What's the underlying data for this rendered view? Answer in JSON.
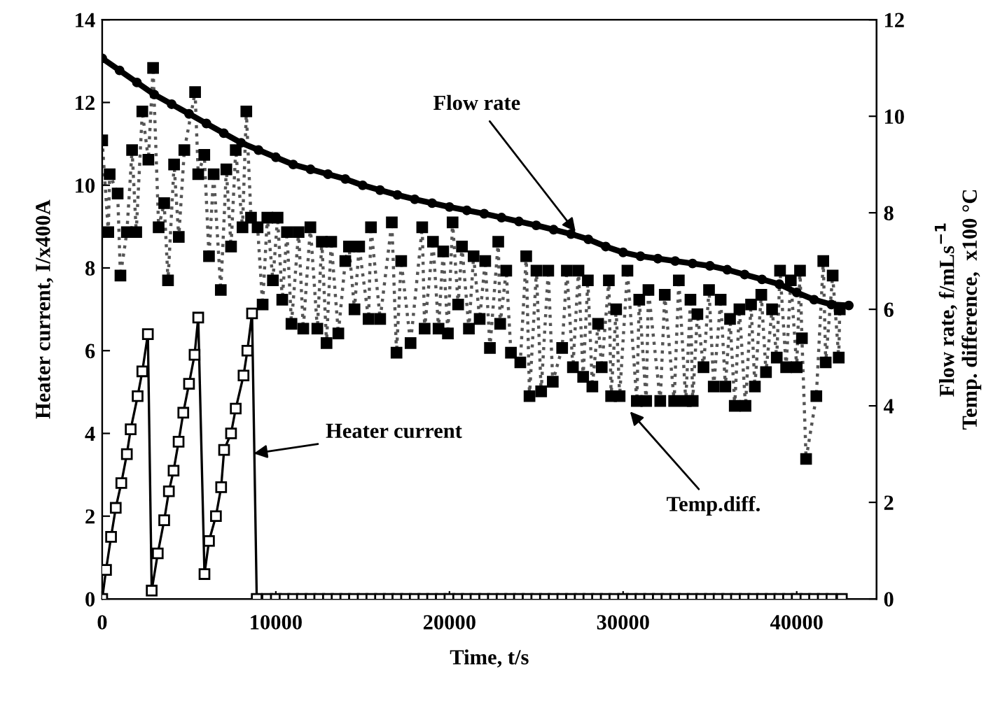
{
  "chart_data": {
    "type": "line",
    "xlabel": "Time, t/s",
    "ylabel": "Heater current, I/x400A",
    "y2label": "Flow rate, f/mLs$^{−1}$\nTemp. difference,  x100 °C",
    "xlim": [
      0,
      44600
    ],
    "xticks": [
      0,
      10000,
      20000,
      30000,
      40000
    ],
    "ylim": [
      0,
      14
    ],
    "yticks": [
      0,
      2,
      4,
      6,
      8,
      10,
      12,
      14
    ],
    "y2lim": [
      0,
      12
    ],
    "y2ticks": [
      0,
      2,
      4,
      6,
      8,
      10,
      12
    ],
    "grid": false,
    "legend": false,
    "series": [
      {
        "axis": "y2",
        "color": "#000000",
        "marker": "circle",
        "line_style": "solid",
        "x": [
          0,
          1000,
          2000,
          3000,
          4000,
          5000,
          6000,
          7000,
          8000,
          9000,
          10000,
          11000,
          12000,
          13000,
          14000,
          15000,
          16000,
          17000,
          18000,
          19000,
          20000,
          21000,
          22000,
          23000,
          24000,
          25000,
          26000,
          27000,
          28000,
          29000,
          30000,
          31000,
          32000,
          33000,
          34000,
          35000,
          36000,
          37000,
          38000,
          39000,
          40000,
          41000,
          42000,
          43000
        ],
        "values": [
          11.2,
          10.95,
          10.7,
          10.45,
          10.25,
          10.05,
          9.85,
          9.65,
          9.45,
          9.3,
          9.15,
          9.0,
          8.9,
          8.8,
          8.7,
          8.57,
          8.47,
          8.37,
          8.28,
          8.2,
          8.12,
          8.05,
          7.98,
          7.9,
          7.82,
          7.74,
          7.65,
          7.56,
          7.45,
          7.3,
          7.18,
          7.1,
          7.05,
          7.0,
          6.95,
          6.9,
          6.82,
          6.72,
          6.62,
          6.52,
          6.35,
          6.2,
          6.1,
          6.08
        ]
      },
      {
        "axis": "y2",
        "color": "#000000",
        "marker": "square",
        "line_style": "dotted",
        "x": [
          0,
          350,
          430,
          890,
          1050,
          1420,
          1720,
          1960,
          2310,
          2660,
          2930,
          3250,
          3570,
          3790,
          4140,
          4410,
          4730,
          5350,
          5530,
          5880,
          6150,
          6420,
          6830,
          7150,
          7420,
          7690,
          8080,
          8300,
          8570,
          8950,
          9240,
          9510,
          9830,
          10100,
          10370,
          10640,
          10900,
          11310,
          11580,
          11990,
          12390,
          12650,
          12920,
          13190,
          13600,
          14000,
          14210,
          14530,
          14800,
          15340,
          15480,
          16010,
          16680,
          16950,
          17220,
          17760,
          18430,
          18570,
          19050,
          19370,
          19640,
          19910,
          20180,
          20500,
          20720,
          21120,
          21390,
          21740,
          22060,
          22330,
          22810,
          22920,
          23270,
          23540,
          24080,
          24420,
          24610,
          25010,
          25280,
          25690,
          25950,
          26490,
          26760,
          27110,
          27430,
          27700,
          27970,
          28230,
          28560,
          28770,
          29180,
          29310,
          29600,
          29800,
          30250,
          30790,
          30930,
          31330,
          31460,
          32140,
          32400,
          32940,
          33210,
          33610,
          33880,
          34010,
          34280,
          34630,
          34950,
          35220,
          35620,
          35890,
          36160,
          36430,
          36700,
          37050,
          37370,
          37590,
          37960,
          38230,
          38580,
          38850,
          39040,
          39390,
          39660,
          40000,
          40190,
          40300,
          40540,
          41130,
          41530,
          41670,
          42070,
          42420,
          42480
        ],
        "values": [
          9.5,
          7.6,
          8.8,
          8.4,
          6.7,
          7.6,
          9.3,
          7.6,
          10.1,
          9.1,
          11.0,
          7.7,
          8.2,
          6.6,
          9.0,
          7.5,
          9.3,
          10.5,
          8.8,
          9.2,
          7.1,
          8.8,
          6.4,
          8.9,
          7.3,
          9.3,
          7.7,
          10.1,
          7.9,
          7.7,
          6.1,
          7.9,
          6.6,
          7.9,
          6.2,
          7.6,
          5.7,
          7.6,
          5.6,
          7.7,
          5.6,
          7.4,
          5.3,
          7.4,
          5.5,
          7.0,
          7.3,
          6.0,
          7.3,
          5.8,
          7.7,
          5.8,
          7.8,
          5.1,
          7.0,
          5.3,
          7.7,
          5.6,
          7.4,
          5.6,
          7.2,
          5.5,
          7.8,
          6.1,
          7.3,
          5.6,
          7.1,
          5.8,
          7.0,
          5.2,
          7.4,
          5.7,
          6.8,
          5.1,
          4.9,
          7.1,
          4.2,
          6.8,
          4.3,
          6.8,
          4.5,
          5.2,
          6.8,
          4.8,
          6.8,
          4.6,
          6.6,
          4.4,
          5.7,
          4.8,
          6.6,
          4.2,
          6.0,
          4.2,
          6.8,
          4.1,
          6.2,
          4.1,
          6.4,
          4.1,
          6.3,
          4.1,
          6.6,
          4.1,
          6.2,
          4.1,
          5.9,
          4.8,
          6.4,
          4.4,
          6.2,
          4.4,
          5.8,
          4.0,
          6.0,
          4.0,
          6.1,
          4.4,
          6.3,
          4.7,
          6.0,
          5.0,
          6.8,
          4.8,
          6.6,
          4.8,
          6.8,
          5.4,
          2.9,
          4.2,
          7.0,
          4.9,
          6.7,
          5.0,
          6.0
        ]
      },
      {
        "axis": "y",
        "color": "#000000",
        "marker": "square",
        "line_style": "solid",
        "x": [
          0,
          220,
          510,
          780,
          1100,
          1420,
          1640,
          2040,
          2310,
          2630,
          2850,
          3200,
          3570,
          3840,
          4110,
          4400,
          4670,
          5000,
          5320,
          5530,
          5890,
          6150,
          6550,
          6850,
          7020,
          7420,
          7690,
          8140,
          8360,
          8630,
          8900,
          9500,
          10000,
          10500,
          11000,
          11500,
          12000,
          12500,
          13000,
          13500,
          14000,
          14500,
          15000,
          15500,
          16000,
          16500,
          17000,
          17500,
          18000,
          18500,
          19000,
          19500,
          20000,
          20500,
          21000,
          21500,
          22000,
          22500,
          23000,
          23500,
          24000,
          24500,
          25000,
          25500,
          26000,
          26500,
          27000,
          27500,
          28000,
          28500,
          29000,
          29500,
          30000,
          30500,
          31000,
          31500,
          32000,
          32500,
          33000,
          33500,
          34000,
          34500,
          35000,
          35500,
          36000,
          36500,
          37000,
          37500,
          38000,
          38500,
          39000,
          39500,
          40000,
          40500,
          41000,
          41500,
          42000,
          42600
        ],
        "values": [
          0,
          0.7,
          1.5,
          2.2,
          2.8,
          3.5,
          4.1,
          4.9,
          5.5,
          6.4,
          0.2,
          1.1,
          1.9,
          2.6,
          3.1,
          3.8,
          4.5,
          5.2,
          5.9,
          6.8,
          0.6,
          1.4,
          2.0,
          2.7,
          3.6,
          4.0,
          4.6,
          5.4,
          6.0,
          6.9,
          0,
          0,
          0,
          0,
          0,
          0,
          0,
          0,
          0,
          0,
          0,
          0,
          0,
          0,
          0,
          0,
          0,
          0,
          0,
          0,
          0,
          0,
          0,
          0,
          0,
          0,
          0,
          0,
          0,
          0,
          0,
          0,
          0,
          0,
          0,
          0,
          0,
          0,
          0,
          0,
          0,
          0,
          0,
          0,
          0,
          0,
          0,
          0,
          0,
          0,
          0,
          0,
          0,
          0,
          0,
          0,
          0,
          0,
          0,
          0,
          0,
          0,
          0,
          0,
          0,
          0,
          0,
          0
        ]
      }
    ],
    "annotations": [
      {
        "text": "Flow rate",
        "x": 27400,
        "y": 8.8
      },
      {
        "text": "Temp.diff.",
        "x": 30250,
        "y": 4.6
      },
      {
        "text": "Heater current",
        "x": 8500,
        "y": 3.5
      }
    ]
  }
}
